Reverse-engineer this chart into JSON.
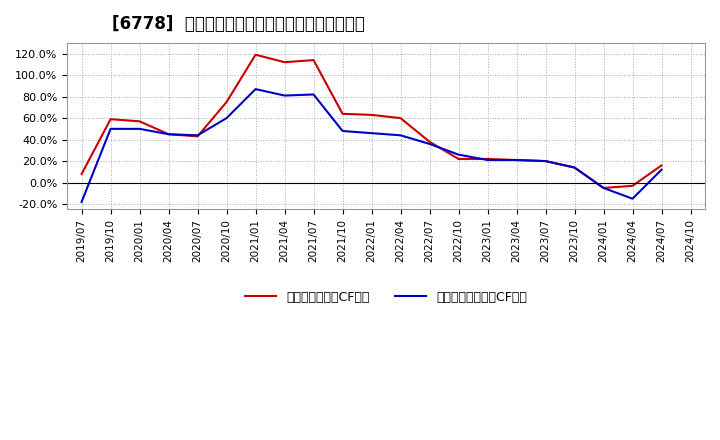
{
  "title": "[6778]  有利子負債キャッシュフロー比率の推移",
  "x_labels": [
    "2019/07",
    "2019/10",
    "2020/01",
    "2020/04",
    "2020/07",
    "2020/10",
    "2021/01",
    "2021/04",
    "2021/07",
    "2021/10",
    "2022/01",
    "2022/04",
    "2022/07",
    "2022/10",
    "2023/01",
    "2023/04",
    "2023/07",
    "2023/10",
    "2024/01",
    "2024/04",
    "2024/07",
    "2024/10"
  ],
  "red_series": [
    8.0,
    59.0,
    57.0,
    45.0,
    43.0,
    75.0,
    119.0,
    112.0,
    114.0,
    64.0,
    63.0,
    60.0,
    38.0,
    22.0,
    22.0,
    21.0,
    20.0,
    14.0,
    -5.0,
    -3.0,
    16.0,
    null
  ],
  "blue_series": [
    -18.0,
    50.0,
    50.0,
    45.0,
    44.0,
    60.0,
    87.0,
    81.0,
    82.0,
    48.0,
    46.0,
    44.0,
    36.0,
    26.0,
    21.0,
    21.0,
    20.0,
    14.0,
    -5.0,
    -15.0,
    12.0,
    null
  ],
  "red_color": "#cc0000",
  "blue_color": "#0000cc",
  "legend_red": "有利子負債営業CF比率",
  "legend_blue": "有利子負債フリーCF比率",
  "ylim": [
    -25,
    130
  ],
  "yticks": [
    -20,
    0,
    20,
    40,
    60,
    80,
    100,
    120
  ],
  "background_color": "#ffffff",
  "plot_bg_color": "#ffffff",
  "grid_color": "#aaaaaa",
  "title_fontsize": 12
}
